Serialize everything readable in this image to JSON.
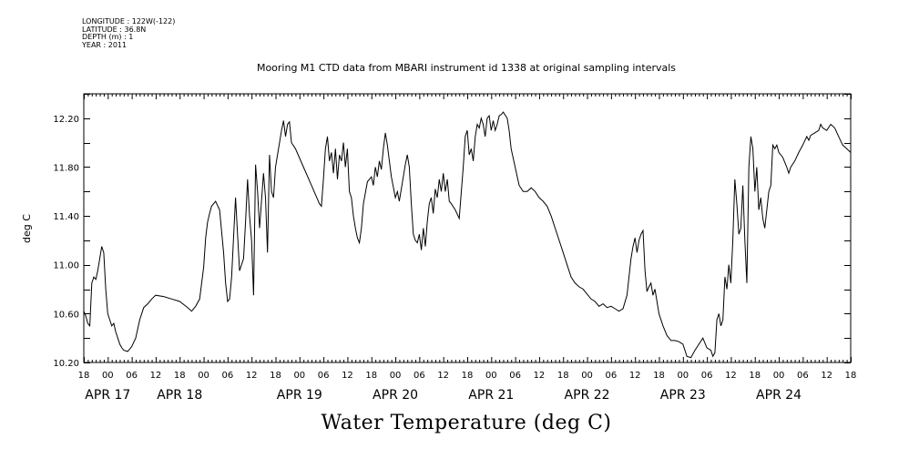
{
  "meta_lines": {
    "longitude": "LONGITUDE : 122W(-122)",
    "latitude": "LATITUDE : 36.8N",
    "depth": "DEPTH (m) : 1",
    "year": "YEAR : 2011"
  },
  "chart_data": {
    "type": "line",
    "title": "Mooring M1 CTD data from MBARI instrument id 1338 at original sampling intervals",
    "bottom_title": "Water Temperature (deg C)",
    "xlabel": "",
    "ylabel": "deg C",
    "x_unit": "hours since 2011-04-16 18:00",
    "xlim": [
      0,
      192
    ],
    "ylim": [
      10.2,
      12.4
    ],
    "yticks": [
      "10.20",
      "10.60",
      "11.00",
      "11.40",
      "11.80",
      "12.20"
    ],
    "ytick_values": [
      10.2,
      10.6,
      11.0,
      11.4,
      11.8,
      12.2
    ],
    "hour_ticks": [
      "18",
      "00",
      "06",
      "12",
      "18",
      "00",
      "06",
      "12",
      "18",
      "00",
      "06",
      "12",
      "18",
      "00",
      "06",
      "12",
      "18",
      "00",
      "06",
      "12",
      "18",
      "00",
      "06",
      "12",
      "18",
      "00",
      "06",
      "12",
      "18",
      "00",
      "06",
      "12",
      "18"
    ],
    "day_labels": [
      {
        "label": "APR 17",
        "hour": 6
      },
      {
        "label": "APR 18",
        "hour": 24
      },
      {
        "label": "APR 19",
        "hour": 54
      },
      {
        "label": "APR 20",
        "hour": 78
      },
      {
        "label": "APR 21",
        "hour": 102
      },
      {
        "label": "APR 22",
        "hour": 126
      },
      {
        "label": "APR 23",
        "hour": 150
      },
      {
        "label": "APR 24",
        "hour": 174
      }
    ],
    "grid": false,
    "series": [
      {
        "values": [
          [
            0,
            10.62
          ],
          [
            0.5,
            10.58
          ],
          [
            1,
            10.52
          ],
          [
            1.5,
            10.5
          ],
          [
            2,
            10.85
          ],
          [
            2.5,
            10.9
          ],
          [
            3,
            10.88
          ],
          [
            3.5,
            10.95
          ],
          [
            4,
            11.05
          ],
          [
            4.5,
            11.15
          ],
          [
            5,
            11.1
          ],
          [
            5.5,
            10.8
          ],
          [
            6,
            10.6
          ],
          [
            6.5,
            10.55
          ],
          [
            7,
            10.5
          ],
          [
            7.5,
            10.52
          ],
          [
            8,
            10.45
          ],
          [
            8.5,
            10.4
          ],
          [
            9,
            10.35
          ],
          [
            9.5,
            10.32
          ],
          [
            10,
            10.3
          ],
          [
            11,
            10.29
          ],
          [
            12,
            10.33
          ],
          [
            13,
            10.4
          ],
          [
            14,
            10.55
          ],
          [
            15,
            10.65
          ],
          [
            16,
            10.68
          ],
          [
            17,
            10.72
          ],
          [
            18,
            10.75
          ],
          [
            20,
            10.74
          ],
          [
            22,
            10.72
          ],
          [
            24,
            10.7
          ],
          [
            26,
            10.65
          ],
          [
            27,
            10.62
          ],
          [
            28,
            10.66
          ],
          [
            29,
            10.72
          ],
          [
            30,
            10.98
          ],
          [
            30.5,
            11.22
          ],
          [
            31,
            11.35
          ],
          [
            31.5,
            11.42
          ],
          [
            32,
            11.48
          ],
          [
            33,
            11.52
          ],
          [
            34,
            11.45
          ],
          [
            35,
            11.1
          ],
          [
            35.5,
            10.85
          ],
          [
            36,
            10.7
          ],
          [
            36.5,
            10.72
          ],
          [
            37,
            10.9
          ],
          [
            38,
            11.55
          ],
          [
            38.5,
            11.25
          ],
          [
            39,
            10.95
          ],
          [
            40,
            11.05
          ],
          [
            40.5,
            11.35
          ],
          [
            41,
            11.7
          ],
          [
            41.5,
            11.4
          ],
          [
            42,
            11.2
          ],
          [
            42.5,
            10.75
          ],
          [
            43,
            11.82
          ],
          [
            43.5,
            11.6
          ],
          [
            44,
            11.3
          ],
          [
            45,
            11.75
          ],
          [
            45.5,
            11.55
          ],
          [
            46,
            11.1
          ],
          [
            46.5,
            11.9
          ],
          [
            47,
            11.6
          ],
          [
            47.5,
            11.55
          ],
          [
            48,
            11.8
          ],
          [
            48.5,
            11.9
          ],
          [
            49,
            12.0
          ],
          [
            49.5,
            12.1
          ],
          [
            50,
            12.18
          ],
          [
            50.5,
            12.05
          ],
          [
            51,
            12.15
          ],
          [
            51.5,
            12.17
          ],
          [
            52,
            12.0
          ],
          [
            53,
            11.95
          ],
          [
            55,
            11.8
          ],
          [
            57,
            11.65
          ],
          [
            59,
            11.5
          ],
          [
            59.5,
            11.48
          ],
          [
            60,
            11.7
          ],
          [
            60.5,
            11.95
          ],
          [
            61,
            12.05
          ],
          [
            61.5,
            11.85
          ],
          [
            62,
            11.92
          ],
          [
            62.5,
            11.75
          ],
          [
            63,
            11.95
          ],
          [
            63.5,
            11.7
          ],
          [
            64,
            11.9
          ],
          [
            64.5,
            11.85
          ],
          [
            65,
            12.0
          ],
          [
            65.5,
            11.8
          ],
          [
            66,
            11.95
          ],
          [
            66.5,
            11.6
          ],
          [
            67,
            11.55
          ],
          [
            67.5,
            11.4
          ],
          [
            68,
            11.3
          ],
          [
            68.5,
            11.22
          ],
          [
            69,
            11.18
          ],
          [
            69.5,
            11.3
          ],
          [
            70,
            11.5
          ],
          [
            71,
            11.68
          ],
          [
            72,
            11.72
          ],
          [
            72.5,
            11.65
          ],
          [
            73,
            11.8
          ],
          [
            73.5,
            11.72
          ],
          [
            74,
            11.85
          ],
          [
            74.5,
            11.78
          ],
          [
            75,
            11.95
          ],
          [
            75.5,
            12.08
          ],
          [
            76,
            11.98
          ],
          [
            76.5,
            11.85
          ],
          [
            77,
            11.72
          ],
          [
            78,
            11.55
          ],
          [
            78.5,
            11.6
          ],
          [
            79,
            11.52
          ],
          [
            80,
            11.72
          ],
          [
            80.5,
            11.82
          ],
          [
            81,
            11.9
          ],
          [
            81.5,
            11.8
          ],
          [
            82,
            11.5
          ],
          [
            82.5,
            11.25
          ],
          [
            83,
            11.2
          ],
          [
            83.5,
            11.18
          ],
          [
            84,
            11.25
          ],
          [
            84.5,
            11.12
          ],
          [
            85,
            11.3
          ],
          [
            85.5,
            11.15
          ],
          [
            86,
            11.35
          ],
          [
            86.5,
            11.5
          ],
          [
            87,
            11.55
          ],
          [
            87.5,
            11.42
          ],
          [
            88,
            11.62
          ],
          [
            88.5,
            11.55
          ],
          [
            89,
            11.7
          ],
          [
            89.5,
            11.6
          ],
          [
            90,
            11.75
          ],
          [
            90.5,
            11.6
          ],
          [
            91,
            11.7
          ],
          [
            91.5,
            11.52
          ],
          [
            92,
            11.5
          ],
          [
            93,
            11.45
          ],
          [
            94,
            11.38
          ],
          [
            95,
            11.8
          ],
          [
            95.5,
            12.05
          ],
          [
            96,
            12.1
          ],
          [
            96.5,
            11.9
          ],
          [
            97,
            11.95
          ],
          [
            97.5,
            11.85
          ],
          [
            98,
            12.05
          ],
          [
            98.5,
            12.15
          ],
          [
            99,
            12.12
          ],
          [
            99.5,
            12.2
          ],
          [
            100,
            12.15
          ],
          [
            100.5,
            12.05
          ],
          [
            101,
            12.2
          ],
          [
            101.5,
            12.22
          ],
          [
            102,
            12.1
          ],
          [
            102.5,
            12.18
          ],
          [
            103,
            12.1
          ],
          [
            103.5,
            12.15
          ],
          [
            104,
            12.22
          ],
          [
            104.5,
            12.23
          ],
          [
            105,
            12.25
          ],
          [
            106,
            12.2
          ],
          [
            106.5,
            12.1
          ],
          [
            107,
            11.95
          ],
          [
            108,
            11.8
          ],
          [
            109,
            11.65
          ],
          [
            110,
            11.6
          ],
          [
            111,
            11.6
          ],
          [
            112,
            11.63
          ],
          [
            113,
            11.6
          ],
          [
            114,
            11.55
          ],
          [
            115,
            11.52
          ],
          [
            116,
            11.48
          ],
          [
            117,
            11.4
          ],
          [
            118,
            11.3
          ],
          [
            119,
            11.2
          ],
          [
            120,
            11.1
          ],
          [
            121,
            11.0
          ],
          [
            122,
            10.9
          ],
          [
            123,
            10.85
          ],
          [
            124,
            10.82
          ],
          [
            125,
            10.8
          ],
          [
            126,
            10.76
          ],
          [
            127,
            10.72
          ],
          [
            128,
            10.7
          ],
          [
            129,
            10.66
          ],
          [
            130,
            10.68
          ],
          [
            131,
            10.65
          ],
          [
            132,
            10.66
          ],
          [
            133,
            10.64
          ],
          [
            134,
            10.62
          ],
          [
            135,
            10.64
          ],
          [
            136,
            10.75
          ],
          [
            136.5,
            10.9
          ],
          [
            137,
            11.05
          ],
          [
            137.5,
            11.15
          ],
          [
            138,
            11.22
          ],
          [
            138.5,
            11.1
          ],
          [
            139,
            11.2
          ],
          [
            139.5,
            11.25
          ],
          [
            140,
            11.28
          ],
          [
            140.5,
            10.95
          ],
          [
            141,
            10.78
          ],
          [
            141.5,
            10.82
          ],
          [
            142,
            10.85
          ],
          [
            142.5,
            10.75
          ],
          [
            143,
            10.8
          ],
          [
            143.5,
            10.7
          ],
          [
            144,
            10.6
          ],
          [
            145,
            10.5
          ],
          [
            146,
            10.42
          ],
          [
            147,
            10.38
          ],
          [
            148,
            10.38
          ],
          [
            149,
            10.37
          ],
          [
            150,
            10.35
          ],
          [
            151,
            10.25
          ],
          [
            152,
            10.24
          ],
          [
            153,
            10.3
          ],
          [
            154,
            10.35
          ],
          [
            155,
            10.4
          ],
          [
            156,
            10.32
          ],
          [
            157,
            10.3
          ],
          [
            157.5,
            10.25
          ],
          [
            158,
            10.28
          ],
          [
            158.5,
            10.55
          ],
          [
            159,
            10.6
          ],
          [
            159.5,
            10.5
          ],
          [
            160,
            10.55
          ],
          [
            160.5,
            10.9
          ],
          [
            161,
            10.8
          ],
          [
            161.5,
            11.0
          ],
          [
            162,
            10.85
          ],
          [
            162.5,
            11.2
          ],
          [
            163,
            11.7
          ],
          [
            163.5,
            11.5
          ],
          [
            164,
            11.25
          ],
          [
            164.5,
            11.3
          ],
          [
            165,
            11.65
          ],
          [
            165.5,
            11.2
          ],
          [
            166,
            10.85
          ],
          [
            166.5,
            11.8
          ],
          [
            167,
            12.05
          ],
          [
            167.5,
            11.95
          ],
          [
            168,
            11.6
          ],
          [
            168.5,
            11.8
          ],
          [
            169,
            11.45
          ],
          [
            169.5,
            11.55
          ],
          [
            170,
            11.38
          ],
          [
            170.5,
            11.3
          ],
          [
            171,
            11.45
          ],
          [
            171.5,
            11.6
          ],
          [
            172,
            11.65
          ],
          [
            172.5,
            11.98
          ],
          [
            173,
            11.95
          ],
          [
            173.5,
            11.98
          ],
          [
            174,
            11.92
          ],
          [
            175,
            11.88
          ],
          [
            176,
            11.8
          ],
          [
            176.5,
            11.75
          ],
          [
            177,
            11.8
          ],
          [
            178,
            11.85
          ],
          [
            179,
            11.92
          ],
          [
            180,
            11.98
          ],
          [
            181,
            12.05
          ],
          [
            181.5,
            12.02
          ],
          [
            182,
            12.06
          ],
          [
            183,
            12.08
          ],
          [
            184,
            12.1
          ],
          [
            184.5,
            12.15
          ],
          [
            185,
            12.12
          ],
          [
            186,
            12.1
          ],
          [
            187,
            12.15
          ],
          [
            188,
            12.12
          ],
          [
            189,
            12.05
          ],
          [
            190,
            11.98
          ],
          [
            191,
            11.95
          ],
          [
            192,
            11.92
          ]
        ]
      }
    ]
  }
}
